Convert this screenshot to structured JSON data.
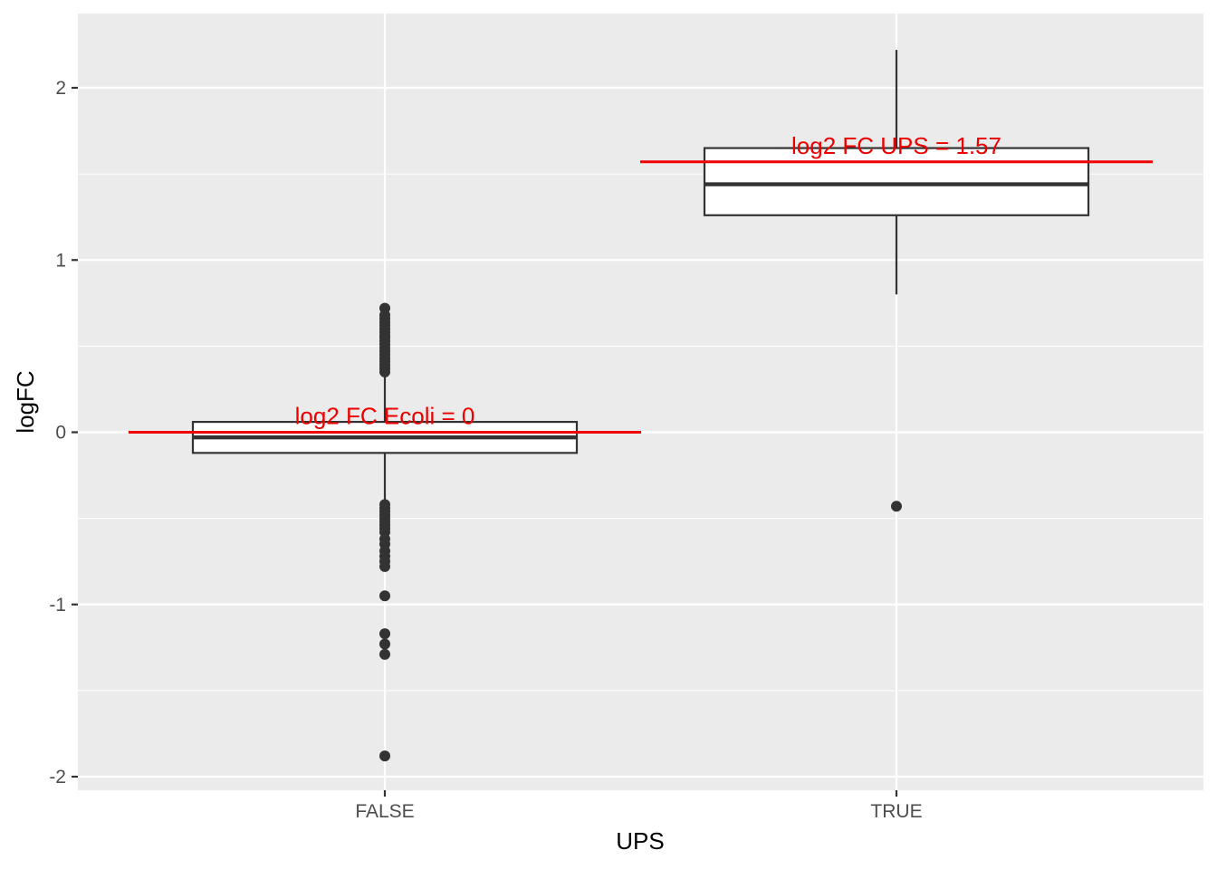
{
  "chart_data": {
    "type": "boxplot",
    "title": "",
    "xlabel": "UPS",
    "ylabel": "logFC",
    "categories": [
      "FALSE",
      "TRUE"
    ],
    "y_ticks": [
      -2,
      -1,
      0,
      1,
      2
    ],
    "y_tick_labels": [
      "-2",
      "-1",
      "0",
      "1",
      "2"
    ],
    "ylim": [
      -2.09,
      2.42
    ],
    "grid": true,
    "legend": "none",
    "boxes": [
      {
        "category": "FALSE",
        "whisker_low": -0.4,
        "q1": -0.12,
        "median": -0.03,
        "q3": 0.06,
        "whisker_high": 0.33,
        "outliers": [
          0.72,
          0.68,
          0.66,
          0.64,
          0.62,
          0.6,
          0.58,
          0.56,
          0.55,
          0.53,
          0.51,
          0.49,
          0.47,
          0.45,
          0.43,
          0.41,
          0.39,
          0.37,
          0.35,
          -0.42,
          -0.44,
          -0.46,
          -0.48,
          -0.5,
          -0.52,
          -0.54,
          -0.56,
          -0.58,
          -0.62,
          -0.65,
          -0.69,
          -0.72,
          -0.75,
          -0.78,
          -0.95,
          -1.17,
          -1.23,
          -1.29,
          -1.88
        ]
      },
      {
        "category": "TRUE",
        "whisker_low": 0.8,
        "q1": 1.26,
        "median": 1.44,
        "q3": 1.65,
        "whisker_high": 2.22,
        "outliers": [
          -0.43
        ]
      }
    ],
    "reference_lines": [
      {
        "category": "FALSE",
        "value": 0,
        "label": "log2 FC Ecoli = 0"
      },
      {
        "category": "TRUE",
        "value": 1.57,
        "label": "log2 FC UPS = 1.57"
      }
    ],
    "colors": {
      "panel_background": "#ebebeb",
      "grid": "#ffffff",
      "box_line": "#333333",
      "box_fill": "#ffffff",
      "point": "#333333",
      "reference": "#ee0000"
    }
  }
}
